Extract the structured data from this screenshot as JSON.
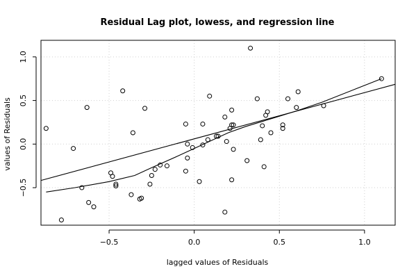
{
  "chart_data": {
    "type": "scatter",
    "title": "Residual Lag plot, lowess, and regression line",
    "xlabel": "lagged values of Residuals",
    "ylabel": "values of Residuals",
    "xlim": [
      -0.9,
      1.18
    ],
    "ylim": [
      -0.93,
      1.19
    ],
    "xticks": [
      -0.5,
      0.0,
      0.5,
      1.0
    ],
    "xtick_labels": [
      "−0.5",
      "0.0",
      "0.5",
      "1.0"
    ],
    "yticks": [
      -0.5,
      0.0,
      0.5,
      1.0
    ],
    "ytick_labels": [
      "−0.5",
      "0.0",
      "0.5",
      "1.0"
    ],
    "grid": true,
    "points": {
      "x": [
        -0.87,
        -0.78,
        -0.71,
        -0.66,
        -0.63,
        -0.62,
        -0.59,
        -0.49,
        -0.48,
        -0.46,
        -0.46,
        -0.42,
        -0.37,
        -0.36,
        -0.32,
        -0.31,
        -0.29,
        -0.26,
        -0.25,
        -0.23,
        -0.2,
        -0.16,
        -0.05,
        -0.05,
        -0.04,
        -0.04,
        -0.01,
        0.03,
        0.05,
        0.05,
        0.08,
        0.09,
        0.13,
        0.14,
        0.18,
        0.18,
        0.19,
        0.21,
        0.22,
        0.22,
        0.22,
        0.23,
        0.23,
        0.31,
        0.33,
        0.37,
        0.39,
        0.4,
        0.41,
        0.42,
        0.43,
        0.45,
        0.52,
        0.52,
        0.55,
        0.6,
        0.61,
        0.76,
        1.1
      ],
      "y": [
        0.18,
        -0.87,
        -0.05,
        -0.5,
        0.42,
        -0.67,
        -0.72,
        -0.33,
        -0.37,
        -0.46,
        -0.48,
        0.61,
        -0.58,
        0.13,
        -0.63,
        -0.62,
        0.41,
        -0.46,
        -0.36,
        -0.29,
        -0.24,
        -0.25,
        0.23,
        -0.31,
        -0.16,
        0.0,
        -0.04,
        -0.43,
        -0.01,
        0.23,
        0.05,
        0.55,
        0.09,
        0.09,
        -0.78,
        0.31,
        0.03,
        0.18,
        0.22,
        0.39,
        -0.41,
        -0.06,
        0.22,
        -0.19,
        1.1,
        0.52,
        0.05,
        0.21,
        -0.26,
        0.33,
        0.37,
        0.13,
        0.18,
        0.22,
        0.52,
        0.42,
        0.6,
        0.44,
        0.75
      ]
    },
    "lowess": {
      "x": [
        -0.87,
        -0.7,
        -0.5,
        -0.35,
        -0.25,
        -0.1,
        0.0,
        0.1,
        0.2,
        0.3,
        0.4,
        0.5,
        0.6,
        0.75,
        1.1
      ],
      "y": [
        -0.55,
        -0.5,
        -0.43,
        -0.36,
        -0.27,
        -0.14,
        -0.05,
        0.04,
        0.13,
        0.2,
        0.26,
        0.32,
        0.38,
        0.48,
        0.75
      ]
    },
    "regression": {
      "intercept": 0.06,
      "slope": 0.53
    }
  }
}
